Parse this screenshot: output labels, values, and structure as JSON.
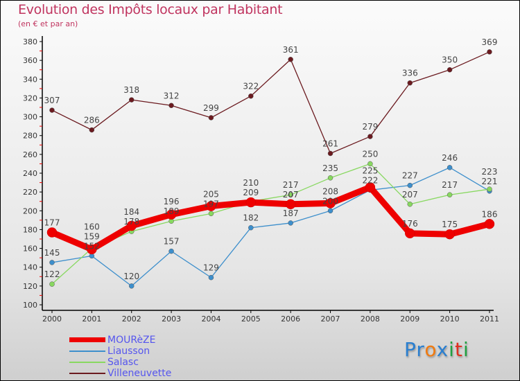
{
  "chart_data": {
    "type": "line",
    "title": "Evolution des Impôts locaux par Habitant",
    "subtitle": "(en € et par an)",
    "xlabel": "",
    "ylabel": "",
    "ylim": [
      100,
      380
    ],
    "yticks": [
      100,
      120,
      140,
      160,
      180,
      200,
      220,
      240,
      260,
      280,
      300,
      320,
      340,
      360,
      380
    ],
    "categories": [
      "2000",
      "2001",
      "2002",
      "2003",
      "2004",
      "2005",
      "2006",
      "2007",
      "2008",
      "2009",
      "2010",
      "2011"
    ],
    "series": [
      {
        "name": "Villeneuvette",
        "color": "#6b1a1f",
        "values": [
          307,
          286,
          318,
          312,
          299,
          322,
          361,
          261,
          279,
          336,
          350,
          369
        ]
      },
      {
        "name": "Liausson",
        "color": "#3d8fcc",
        "values": [
          145,
          152,
          120,
          157,
          129,
          182,
          187,
          200,
          222,
          227,
          246,
          221
        ]
      },
      {
        "name": "Salasc",
        "color": "#88d860",
        "values": [
          122,
          160,
          178,
          189,
          197,
          210,
          217,
          235,
          250,
          207,
          217,
          223
        ]
      },
      {
        "name": "MOURèZE",
        "color": "#ee0000",
        "values": [
          177,
          159,
          184,
          196,
          205,
          209,
          207,
          208,
          225,
          176,
          175,
          186
        ]
      }
    ],
    "legend_order": [
      "MOURèZE",
      "Liausson",
      "Salasc",
      "Villeneuvette"
    ],
    "legend_placement": "bottom-left",
    "grid": false
  },
  "logo": {
    "text": "Proxiti"
  }
}
